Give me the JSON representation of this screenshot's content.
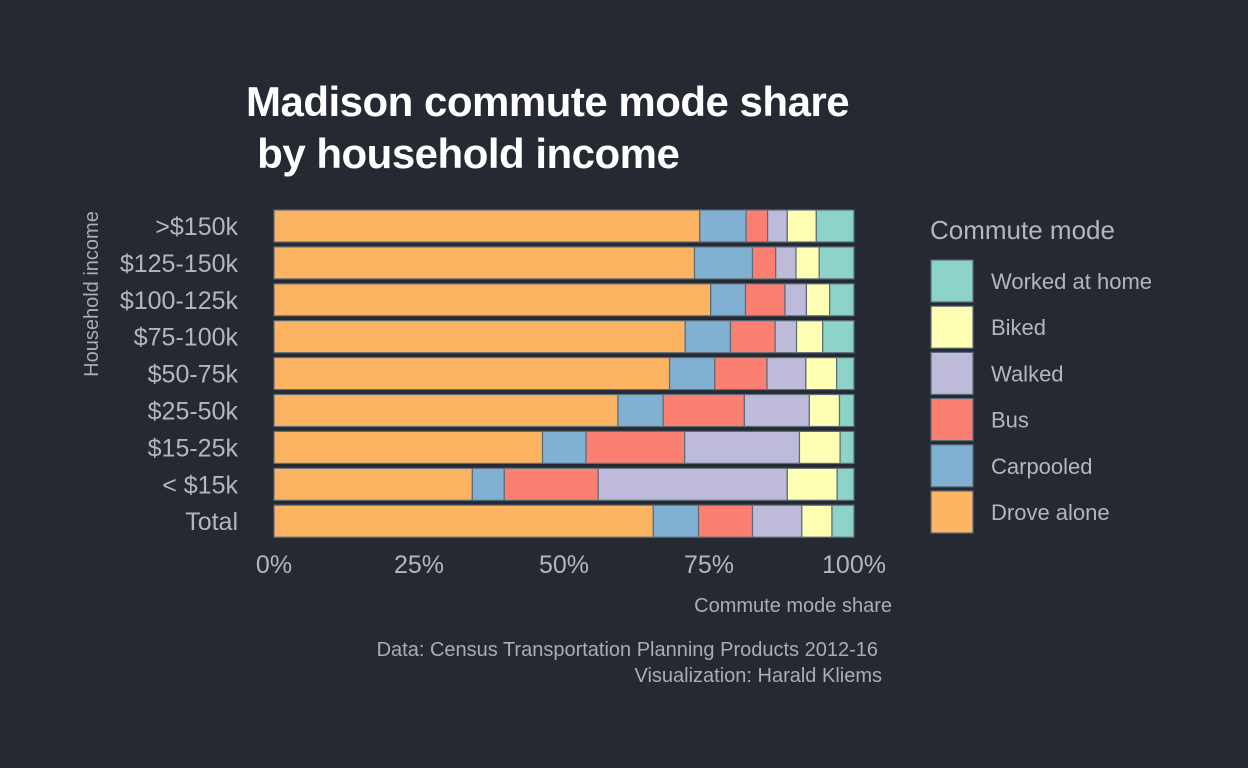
{
  "chart_data": {
    "type": "bar",
    "orientation": "horizontal",
    "stacked": "percent",
    "title": "Madison commute mode share\n by household income",
    "xlabel": "Commute mode share",
    "ylabel": "Household income",
    "xlim": [
      0,
      1
    ],
    "x_ticks": [
      "0%",
      "25%",
      "50%",
      "75%",
      "100%"
    ],
    "categories": [
      ">$150k",
      "$125-150k",
      "$100-125k",
      "$75-100k",
      "$50-75k",
      "$25-50k",
      "$15-25k",
      "< $15k",
      "Total"
    ],
    "series": [
      {
        "name": "Drove alone",
        "color": "#FDB462",
        "values": [
          0.734,
          0.725,
          0.753,
          0.709,
          0.682,
          0.593,
          0.463,
          0.342,
          0.654
        ]
      },
      {
        "name": "Carpooled",
        "color": "#80B1D3",
        "values": [
          0.08,
          0.1,
          0.06,
          0.078,
          0.078,
          0.078,
          0.075,
          0.055,
          0.078
        ]
      },
      {
        "name": "Bus",
        "color": "#FB8072",
        "values": [
          0.037,
          0.04,
          0.068,
          0.077,
          0.09,
          0.14,
          0.17,
          0.162,
          0.093
        ]
      },
      {
        "name": "Walked",
        "color": "#BEBADA",
        "values": [
          0.034,
          0.035,
          0.037,
          0.037,
          0.067,
          0.112,
          0.198,
          0.326,
          0.085
        ]
      },
      {
        "name": "Biked",
        "color": "#FFFFB3",
        "values": [
          0.05,
          0.04,
          0.04,
          0.045,
          0.053,
          0.052,
          0.07,
          0.086,
          0.052
        ]
      },
      {
        "name": "Worked at home",
        "color": "#8DD3C7",
        "values": [
          0.065,
          0.06,
          0.042,
          0.054,
          0.03,
          0.025,
          0.024,
          0.029,
          0.038
        ]
      }
    ],
    "legend": {
      "title": "Commute mode",
      "position": "right",
      "order": [
        "Worked at home",
        "Biked",
        "Walked",
        "Bus",
        "Carpooled",
        "Drove alone"
      ]
    },
    "grid": false,
    "caption": [
      "Data: Census Transportation Planning Products 2012-16",
      "Visualization: Harald Kliems"
    ]
  },
  "colors": {
    "background": "#252932",
    "bar_outline": "#5c6b78"
  }
}
